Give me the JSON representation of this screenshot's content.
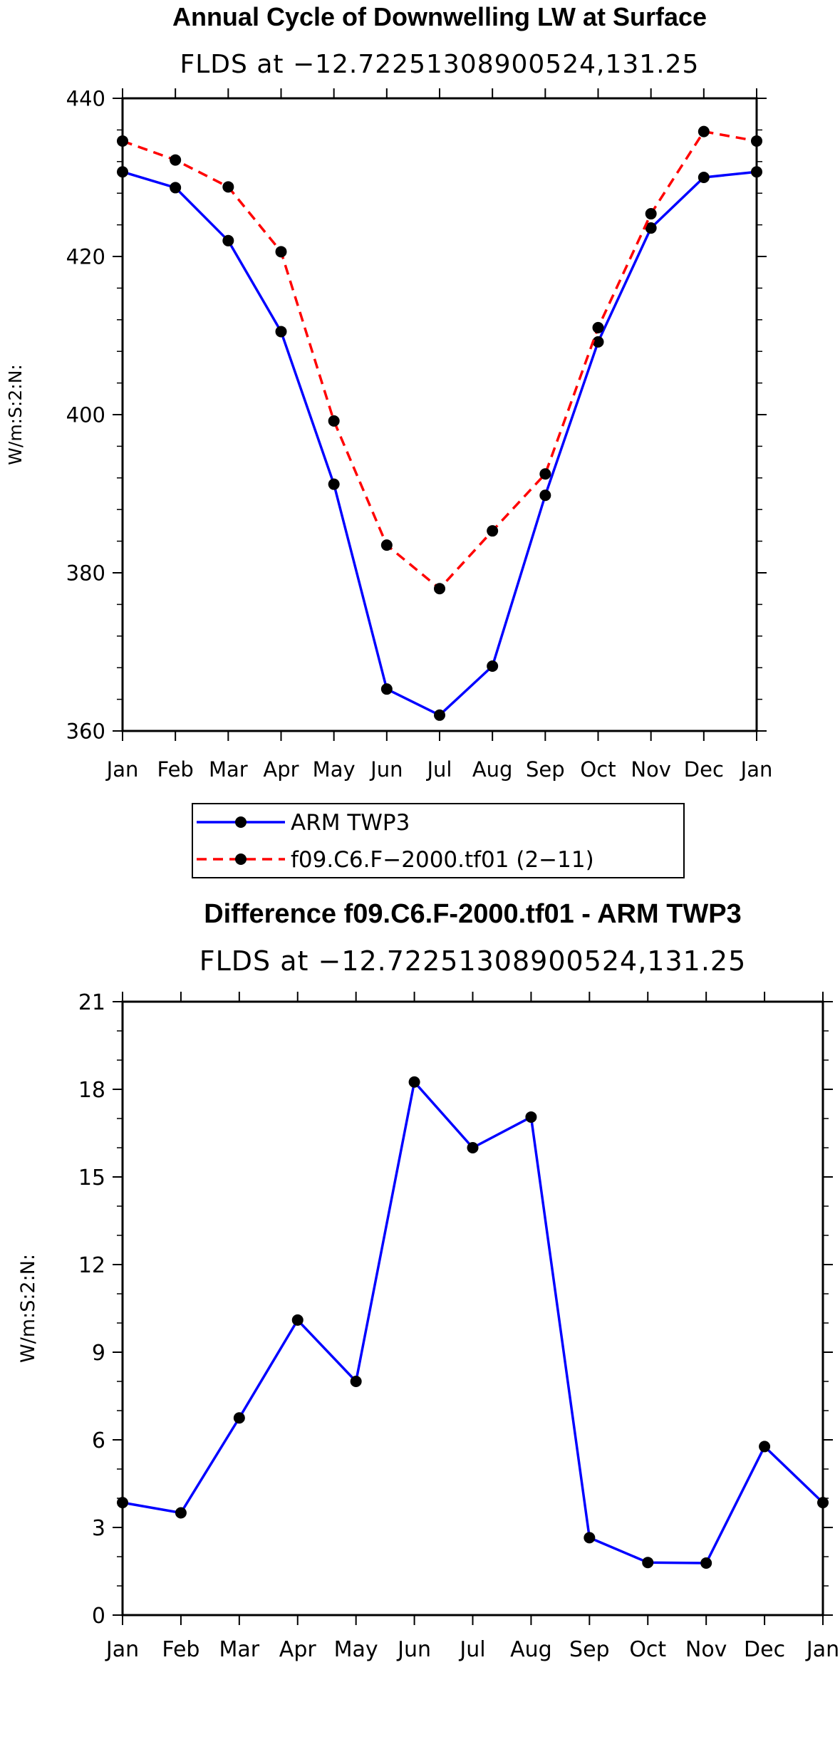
{
  "chart_data": [
    {
      "type": "line",
      "title": "Annual Cycle of Downwelling LW at Surface",
      "subtitle": "FLDS at −12.72251308900524,131.25",
      "xlabel": "",
      "ylabel": "W/m:S:2:N:",
      "categories": [
        "Jan",
        "Feb",
        "Mar",
        "Apr",
        "May",
        "Jun",
        "Jul",
        "Aug",
        "Sep",
        "Oct",
        "Nov",
        "Dec",
        "Jan"
      ],
      "ylim": [
        360,
        440
      ],
      "yticks": [
        360,
        380,
        400,
        420,
        440
      ],
      "series": [
        {
          "name": "ARM TWP3",
          "color": "#0000ff",
          "dash": "solid",
          "values": [
            430.7,
            428.7,
            422.0,
            410.5,
            391.2,
            365.3,
            362.0,
            368.2,
            389.8,
            409.2,
            423.6,
            430.0,
            430.7
          ]
        },
        {
          "name": "f09.C6.F−2000.tf01 (2−11)",
          "color": "#ff0000",
          "dash": "dashed",
          "values": [
            434.6,
            432.2,
            428.8,
            420.6,
            399.2,
            383.5,
            378.0,
            385.3,
            392.5,
            411.0,
            425.4,
            435.8,
            434.6
          ]
        }
      ],
      "legend": {
        "entries": [
          "ARM TWP3",
          "f09.C6.F−2000.tf01 (2−11)"
        ],
        "placement": "below"
      }
    },
    {
      "type": "line",
      "title": "Difference f09.C6.F-2000.tf01 - ARM TWP3",
      "subtitle": "FLDS at −12.72251308900524,131.25",
      "xlabel": "",
      "ylabel": "W/m:S:2:N:",
      "categories": [
        "Jan",
        "Feb",
        "Mar",
        "Apr",
        "May",
        "Jun",
        "Jul",
        "Aug",
        "Sep",
        "Oct",
        "Nov",
        "Dec",
        "Jan"
      ],
      "ylim": [
        0,
        21
      ],
      "yticks": [
        0,
        3,
        6,
        9,
        12,
        15,
        18,
        21
      ],
      "series": [
        {
          "name": "Difference",
          "color": "#0000ff",
          "dash": "solid",
          "values": [
            3.85,
            3.5,
            6.75,
            10.1,
            8.0,
            18.25,
            16.0,
            17.05,
            2.65,
            1.8,
            1.78,
            5.77,
            3.85
          ]
        }
      ]
    }
  ]
}
